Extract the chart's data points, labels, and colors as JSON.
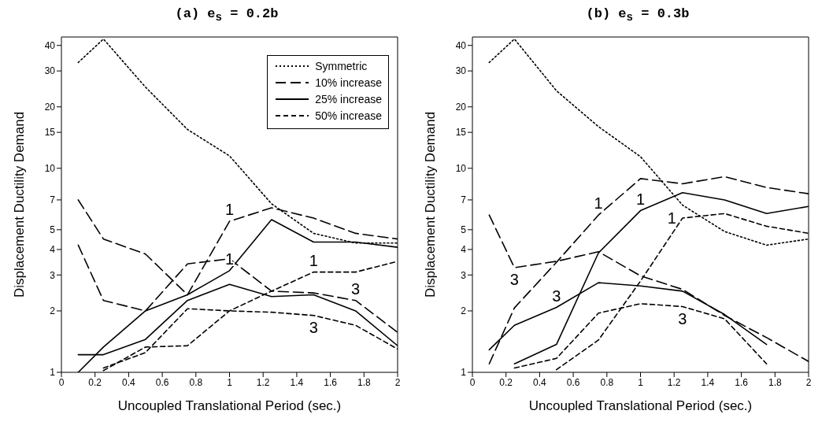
{
  "chart_data": [
    {
      "type": "line",
      "title": "(a)  e$_{s}$ = 0.2b",
      "xlabel": "Uncoupled Translational Period (sec.)",
      "ylabel": "Displacement Ductility Demand",
      "x": [
        0.1,
        0.25,
        0.5,
        0.75,
        1,
        1.25,
        1.5,
        1.75,
        2
      ],
      "xlim": [
        0,
        2
      ],
      "xticks": [
        0,
        0.2,
        0.4,
        0.6,
        0.8,
        1,
        1.2,
        1.4,
        1.6,
        1.8,
        2
      ],
      "ylim": [
        1,
        44
      ],
      "yticks": [
        1,
        2,
        3,
        4,
        5,
        7,
        10,
        15,
        20,
        30,
        40
      ],
      "log": true,
      "legend": "top right",
      "marker": "none",
      "series": [
        {
          "name": "Symmetric",
          "color": "#000000",
          "line_style": "dotted",
          "values": [
            33,
            43,
            25,
            15.5,
            11.5,
            6.7,
            4.8,
            4.3,
            4.3
          ]
        },
        {
          "name": "10% increase",
          "color": "#000000",
          "line_style": "dashed",
          "values": [
            7,
            4.5,
            3.8,
            2.4,
            5.5,
            6.4,
            5.7,
            4.8,
            4.5
          ]
        },
        {
          "color": "#000000",
          "line_style": "dashed",
          "values": [
            4.2,
            2.25,
            2,
            3.4,
            3.6,
            2.5,
            2.45,
            2.25,
            1.57
          ]
        },
        {
          "name": "25% increase",
          "color": "#000000",
          "line_style": "solid",
          "values": [
            1,
            1.33,
            2,
            2.4,
            3.15,
            5.6,
            4.35,
            4.35,
            4.1
          ]
        },
        {
          "color": "#000000",
          "line_style": "solid",
          "values": [
            1.22,
            1.22,
            1.45,
            2.25,
            2.7,
            2.35,
            2.4,
            2,
            1.35
          ]
        },
        {
          "name": "50% increase",
          "color": "#000000",
          "line_style": "dashed",
          "values": [
            null,
            1.02,
            1.33,
            1.35,
            2,
            2.5,
            3.1,
            3.1,
            3.5
          ]
        },
        {
          "color": "#000000",
          "line_style": "dashed",
          "values": [
            null,
            1.05,
            1.25,
            2.05,
            2,
            1.97,
            1.9,
            1.7,
            1.3
          ]
        }
      ],
      "annotations": [
        {
          "text": "1",
          "x": 1,
          "y": 5.5
        },
        {
          "text": "1",
          "x": 1,
          "y": 3.15
        },
        {
          "text": "1",
          "x": 1.5,
          "y": 3.1
        },
        {
          "text": "3",
          "x": 1.75,
          "y": 2.25
        },
        {
          "text": "3",
          "x": 1.5,
          "y": 1.9
        }
      ]
    },
    {
      "type": "line",
      "title": "(b)  e$_{s}$ = 0.3b",
      "xlabel": "Uncoupled Translational Period (sec.)",
      "ylabel": "Displacement Ductility Demand",
      "x": [
        0.1,
        0.25,
        0.5,
        0.75,
        1,
        1.25,
        1.5,
        1.75,
        2
      ],
      "xlim": [
        0,
        2
      ],
      "xticks": [
        0,
        0.2,
        0.4,
        0.6,
        0.8,
        1,
        1.2,
        1.4,
        1.6,
        1.8,
        2
      ],
      "ylim": [
        1,
        44
      ],
      "yticks": [
        1,
        2,
        3,
        4,
        5,
        7,
        10,
        15,
        20,
        30,
        40
      ],
      "log": true,
      "marker": "none",
      "series": [
        {
          "color": "#000000",
          "line_style": "dotted",
          "values": [
            33,
            43,
            24,
            16,
            11.4,
            6.6,
            4.9,
            4.2,
            4.5
          ]
        },
        {
          "color": "#000000",
          "line_style": "dashed",
          "values": [
            1.1,
            2.07,
            3.46,
            5.9,
            8.9,
            8.4,
            9.1,
            8.05,
            7.5
          ]
        },
        {
          "color": "#000000",
          "line_style": "dashed",
          "values": [
            5.9,
            3.26,
            3.5,
            3.9,
            2.97,
            2.55,
            1.9,
            1.48,
            1.13
          ]
        },
        {
          "color": "#000000",
          "line_style": "solid",
          "values": [
            null,
            1.1,
            1.37,
            3.85,
            6.2,
            7.6,
            7,
            6,
            6.5
          ]
        },
        {
          "color": "#000000",
          "line_style": "solid",
          "values": [
            1.29,
            1.7,
            2.08,
            2.75,
            2.65,
            2.5,
            1.92,
            1.37,
            null
          ]
        },
        {
          "color": "#000000",
          "line_style": "dashed",
          "values": [
            null,
            null,
            1.03,
            1.44,
            2.8,
            5.7,
            6,
            5.2,
            4.8
          ]
        },
        {
          "color": "#000000",
          "line_style": "dashed",
          "values": [
            null,
            1.05,
            1.17,
            1.95,
            2.17,
            2.1,
            1.83,
            1.1,
            null
          ]
        }
      ],
      "annotations": [
        {
          "text": "1",
          "x": 0.75,
          "y": 5.9
        },
        {
          "text": "1",
          "x": 1,
          "y": 6.2
        },
        {
          "text": "1",
          "x": 1.25,
          "y": 5.7
        },
        {
          "text": "3",
          "x": 0.25,
          "y": 3.26
        },
        {
          "text": "3",
          "x": 0.5,
          "y": 2.08
        },
        {
          "text": "3",
          "x": 1.25,
          "y": 2.1
        }
      ]
    }
  ]
}
